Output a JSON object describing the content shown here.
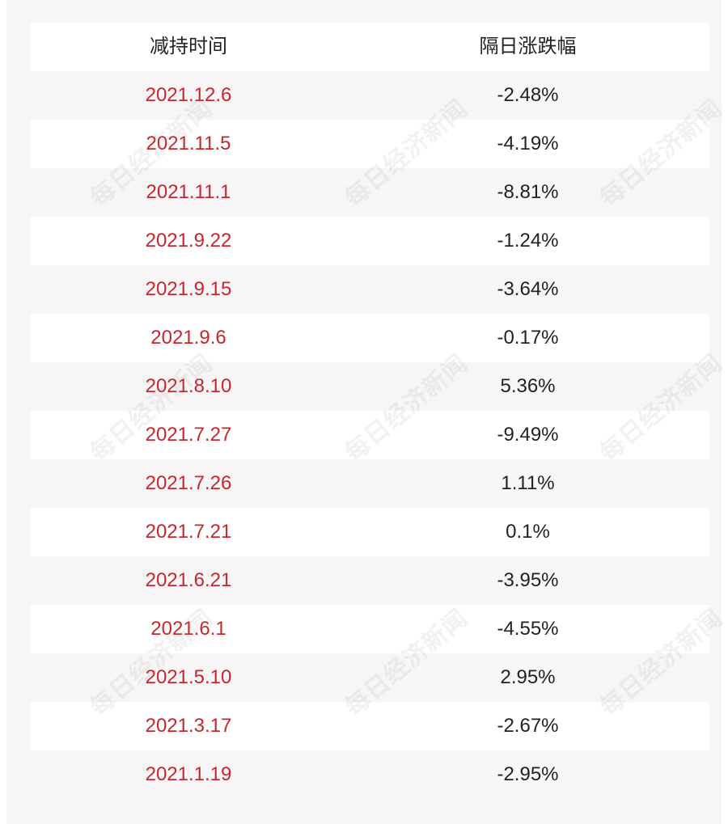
{
  "chart_data": {
    "type": "table",
    "columns": [
      "减持时间",
      "隔日涨跌幅"
    ],
    "rows": [
      {
        "date": "2021.12.6",
        "change": "-2.48%"
      },
      {
        "date": "2021.11.5",
        "change": "-4.19%"
      },
      {
        "date": "2021.11.1",
        "change": "-8.81%"
      },
      {
        "date": "2021.9.22",
        "change": "-1.24%"
      },
      {
        "date": "2021.9.15",
        "change": "-3.64%"
      },
      {
        "date": "2021.9.6",
        "change": "-0.17%"
      },
      {
        "date": "2021.8.10",
        "change": "5.36%"
      },
      {
        "date": "2021.7.27",
        "change": "-9.49%"
      },
      {
        "date": "2021.7.26",
        "change": "1.11%"
      },
      {
        "date": "2021.7.21",
        "change": "0.1%"
      },
      {
        "date": "2021.6.21",
        "change": "-3.95%"
      },
      {
        "date": "2021.6.1",
        "change": "-4.55%"
      },
      {
        "date": "2021.5.10",
        "change": "2.95%"
      },
      {
        "date": "2021.3.17",
        "change": "-2.67%"
      },
      {
        "date": "2021.1.19",
        "change": "-2.95%"
      }
    ]
  },
  "watermark": "每日经济新闻",
  "colors": {
    "date_text": "#c8262c",
    "value_text": "#222222",
    "row_alt": "#f8f5f6",
    "row_white": "#ffffff"
  }
}
